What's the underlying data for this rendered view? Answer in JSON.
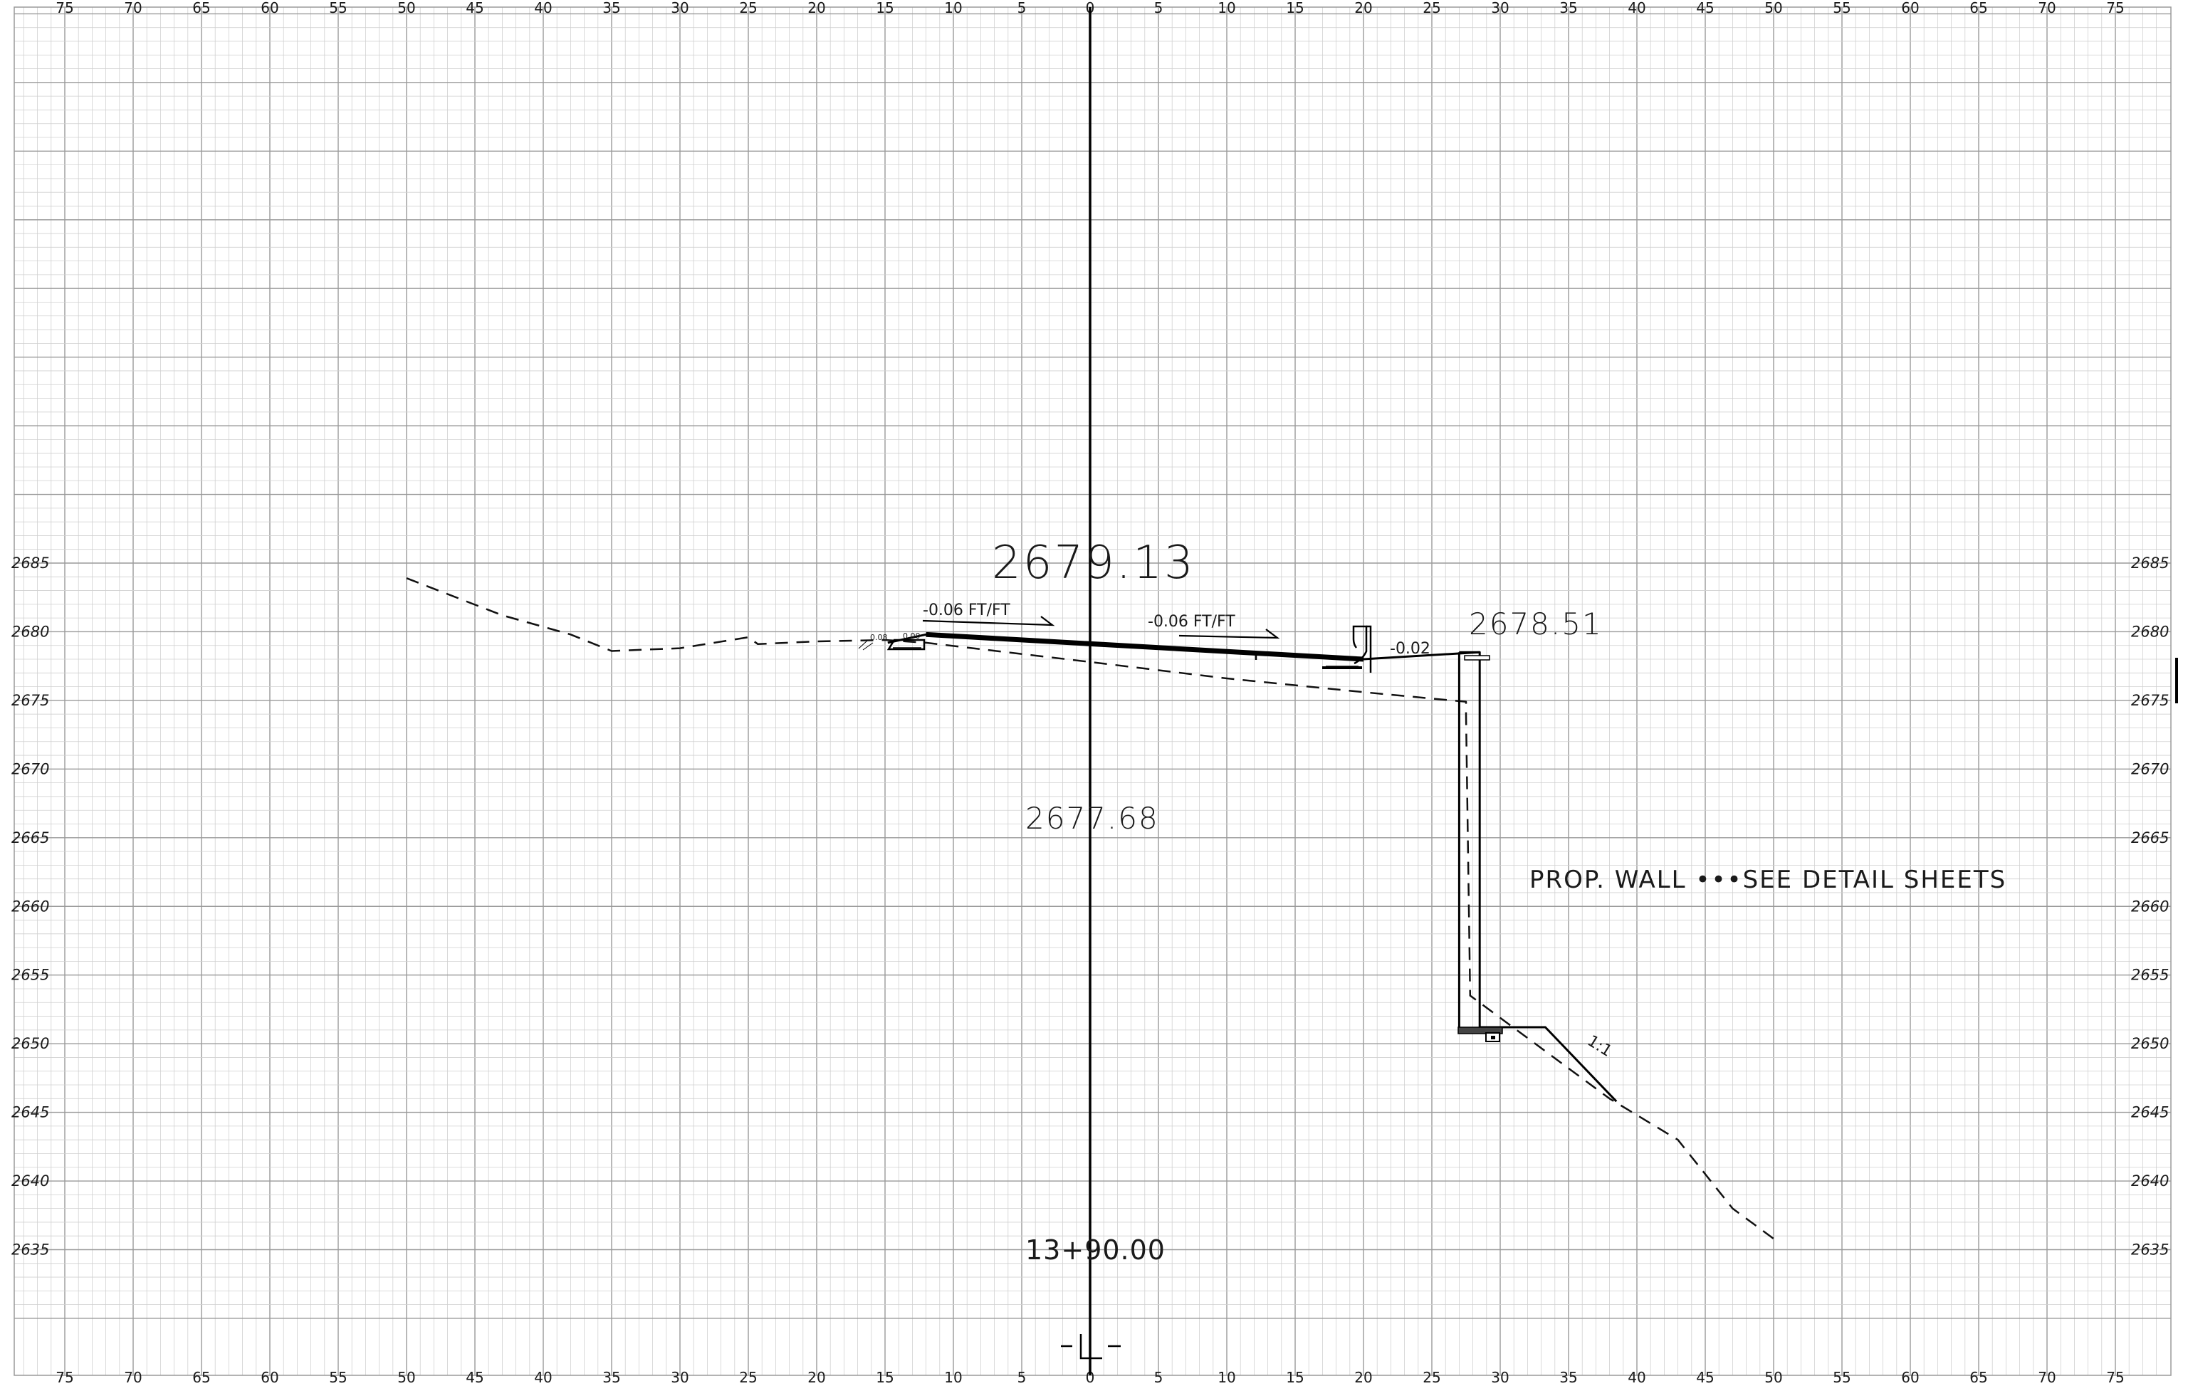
{
  "sheet": {
    "offset_ticks": [
      "75",
      "70",
      "65",
      "60",
      "55",
      "50",
      "45",
      "40",
      "35",
      "30",
      "25",
      "20",
      "15",
      "10",
      "5",
      "0",
      "5",
      "10",
      "15",
      "20",
      "25",
      "30",
      "35",
      "40",
      "45",
      "50",
      "55",
      "60",
      "65",
      "70",
      "75"
    ],
    "elevation_ticks": [
      "2685",
      "2680",
      "2675",
      "2670",
      "2665",
      "2660",
      "2655",
      "2650",
      "2645",
      "2640",
      "2635"
    ]
  },
  "annotations": {
    "top_elevation": "2679.13",
    "right_elevation": "2678.51",
    "existing_elevation": "2677.68",
    "slope_left": "-0.06  FT/FT",
    "slope_right": "-0.06  FT/FT",
    "slope_shoulder": "-0.02",
    "small_slope_a": "0.08",
    "small_slope_b": "0.00",
    "wall_note": "PROP. WALL  •••SEE DETAIL SHEETS",
    "side_slope": "1:1",
    "station": "13+90.00"
  },
  "chart_data": {
    "type": "line",
    "xlabel": "",
    "ylabel": "",
    "xlim": [
      -78,
      78
    ],
    "ylim": [
      2631,
      2686
    ],
    "centerline_offset": 0,
    "series": [
      {
        "points": [
          [
            -50,
            2683.9
          ],
          [
            -43,
            2681.2
          ],
          [
            -38,
            2679.8
          ],
          [
            -35,
            2678.6
          ],
          [
            -30,
            2678.8
          ],
          [
            -25,
            2679.6
          ],
          [
            -24.3,
            2679.1
          ],
          [
            -20,
            2679.3
          ],
          [
            -15,
            2679.4
          ],
          [
            -12,
            2679.2
          ],
          [
            0,
            2677.8
          ],
          [
            10,
            2676.6
          ],
          [
            20,
            2675.6
          ],
          [
            27.5,
            2674.9
          ],
          [
            27.5,
            2674.0
          ],
          [
            27.8,
            2653.5
          ],
          [
            38,
            2646.0
          ],
          [
            43,
            2643.0
          ],
          [
            47,
            2638.0
          ],
          [
            50,
            2635.8
          ]
        ]
      },
      {
        "points": [
          [
            -14.8,
            2679.2
          ],
          [
            -12,
            2679.8
          ],
          [
            0,
            2679.13
          ],
          [
            20,
            2678.0
          ],
          [
            28.5,
            2678.51
          ],
          [
            28.5,
            2651.2
          ],
          [
            33.3,
            2651.2
          ],
          [
            38.5,
            2645.8
          ]
        ]
      }
    ]
  }
}
